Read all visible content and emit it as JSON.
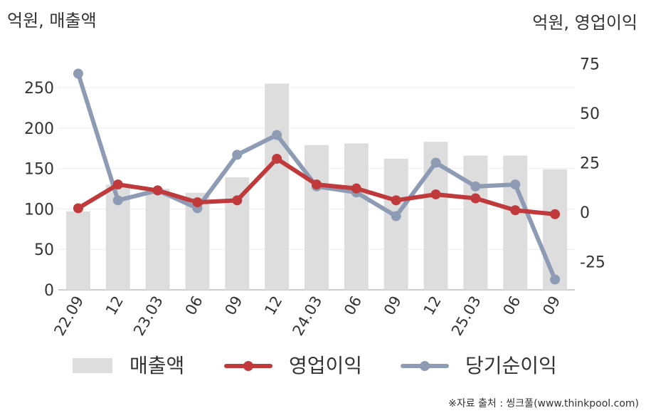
{
  "chart_data": {
    "type": "bar+line",
    "left_axis_label": "억원, 매출액",
    "right_axis_label": "억원, 영업이익",
    "categories": [
      "22.09",
      "12",
      "23.03",
      "06",
      "09",
      "12",
      "24.03",
      "06",
      "09",
      "12",
      "25.03",
      "06",
      "09"
    ],
    "left_axis": {
      "range": [
        0,
        280
      ],
      "ticks": [
        0,
        50,
        100,
        150,
        200,
        250
      ]
    },
    "right_axis": {
      "range": [
        -40,
        80
      ],
      "ticks": [
        -25,
        0,
        25,
        50,
        75
      ]
    },
    "series": [
      {
        "name": "매출액",
        "type": "bar",
        "axis": "left",
        "color": "#dddddd",
        "values": [
          97,
          130,
          125,
          120,
          139,
          255,
          179,
          181,
          162,
          183,
          166,
          166,
          149
        ]
      },
      {
        "name": "영업이익",
        "type": "line",
        "axis": "right",
        "color": "#c0393b",
        "values": [
          2,
          14,
          11,
          5,
          6,
          27,
          14,
          12,
          6,
          9,
          7,
          1,
          -1
        ]
      },
      {
        "name": "당기순이익",
        "type": "line",
        "axis": "right",
        "color": "#8e9bb5",
        "values": [
          70,
          6,
          11,
          2,
          29,
          39,
          13,
          10,
          -2,
          25,
          13,
          14,
          -34
        ]
      }
    ],
    "grid": true,
    "legend_position": "bottom"
  },
  "source": "※자료 출처 : 씽크풀(www.thinkpool.com)"
}
